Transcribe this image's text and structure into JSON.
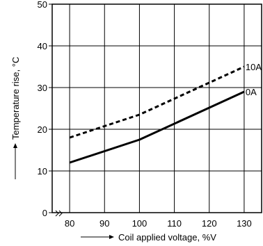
{
  "chart_data": {
    "type": "line",
    "xlabel": "Coil applied voltage, %V",
    "ylabel": "Temperature rise, °C",
    "xlim": [
      75,
      135
    ],
    "ylim": [
      0,
      50
    ],
    "x_ticks": [
      80,
      90,
      100,
      110,
      120,
      130
    ],
    "y_ticks": [
      0,
      10,
      20,
      30,
      40,
      50
    ],
    "x_axis_break": true,
    "grid": true,
    "series": [
      {
        "name": "10A",
        "style": "dashed",
        "x": [
          80,
          100,
          130
        ],
        "y": [
          18,
          23.5,
          35
        ]
      },
      {
        "name": "0A",
        "style": "solid",
        "x": [
          80,
          100,
          130
        ],
        "y": [
          12,
          17.5,
          29
        ]
      }
    ]
  },
  "colors": {
    "line": "#000000",
    "grid": "#000000",
    "background": "#ffffff"
  }
}
